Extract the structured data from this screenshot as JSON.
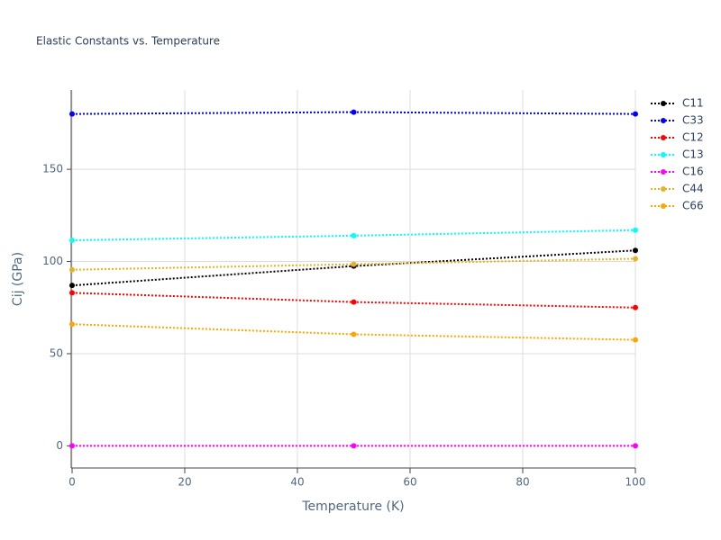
{
  "chart_data": {
    "type": "line",
    "title": "Elastic Constants vs. Temperature",
    "x_label": "Temperature (K)",
    "y_label": "Cij (GPa)",
    "x": [
      0,
      50,
      100
    ],
    "series": [
      {
        "name": "C11",
        "color": "#000000",
        "values": [
          87,
          97.5,
          106
        ]
      },
      {
        "name": "C33",
        "color": "#0000ff",
        "values": [
          180,
          181,
          180
        ]
      },
      {
        "name": "C12",
        "color": "#ff0000",
        "values": [
          83,
          78,
          75
        ]
      },
      {
        "name": "C13",
        "color": "#00ffff",
        "values": [
          111.5,
          114,
          117
        ]
      },
      {
        "name": "C16",
        "color": "#ff00ff",
        "values": [
          0,
          0,
          0
        ]
      },
      {
        "name": "C44",
        "color": "#e6b422",
        "values": [
          95.5,
          98.5,
          101.5
        ]
      },
      {
        "name": "C66",
        "color": "#ffa500",
        "values": [
          66,
          60.5,
          57.5
        ]
      }
    ],
    "xlim": [
      0,
      100
    ],
    "xticks": [
      0,
      20,
      40,
      60,
      80,
      100
    ],
    "ylim": [
      -12,
      193
    ],
    "yticks": [
      0,
      50,
      100,
      150
    ],
    "grid": true,
    "legend": "right"
  }
}
